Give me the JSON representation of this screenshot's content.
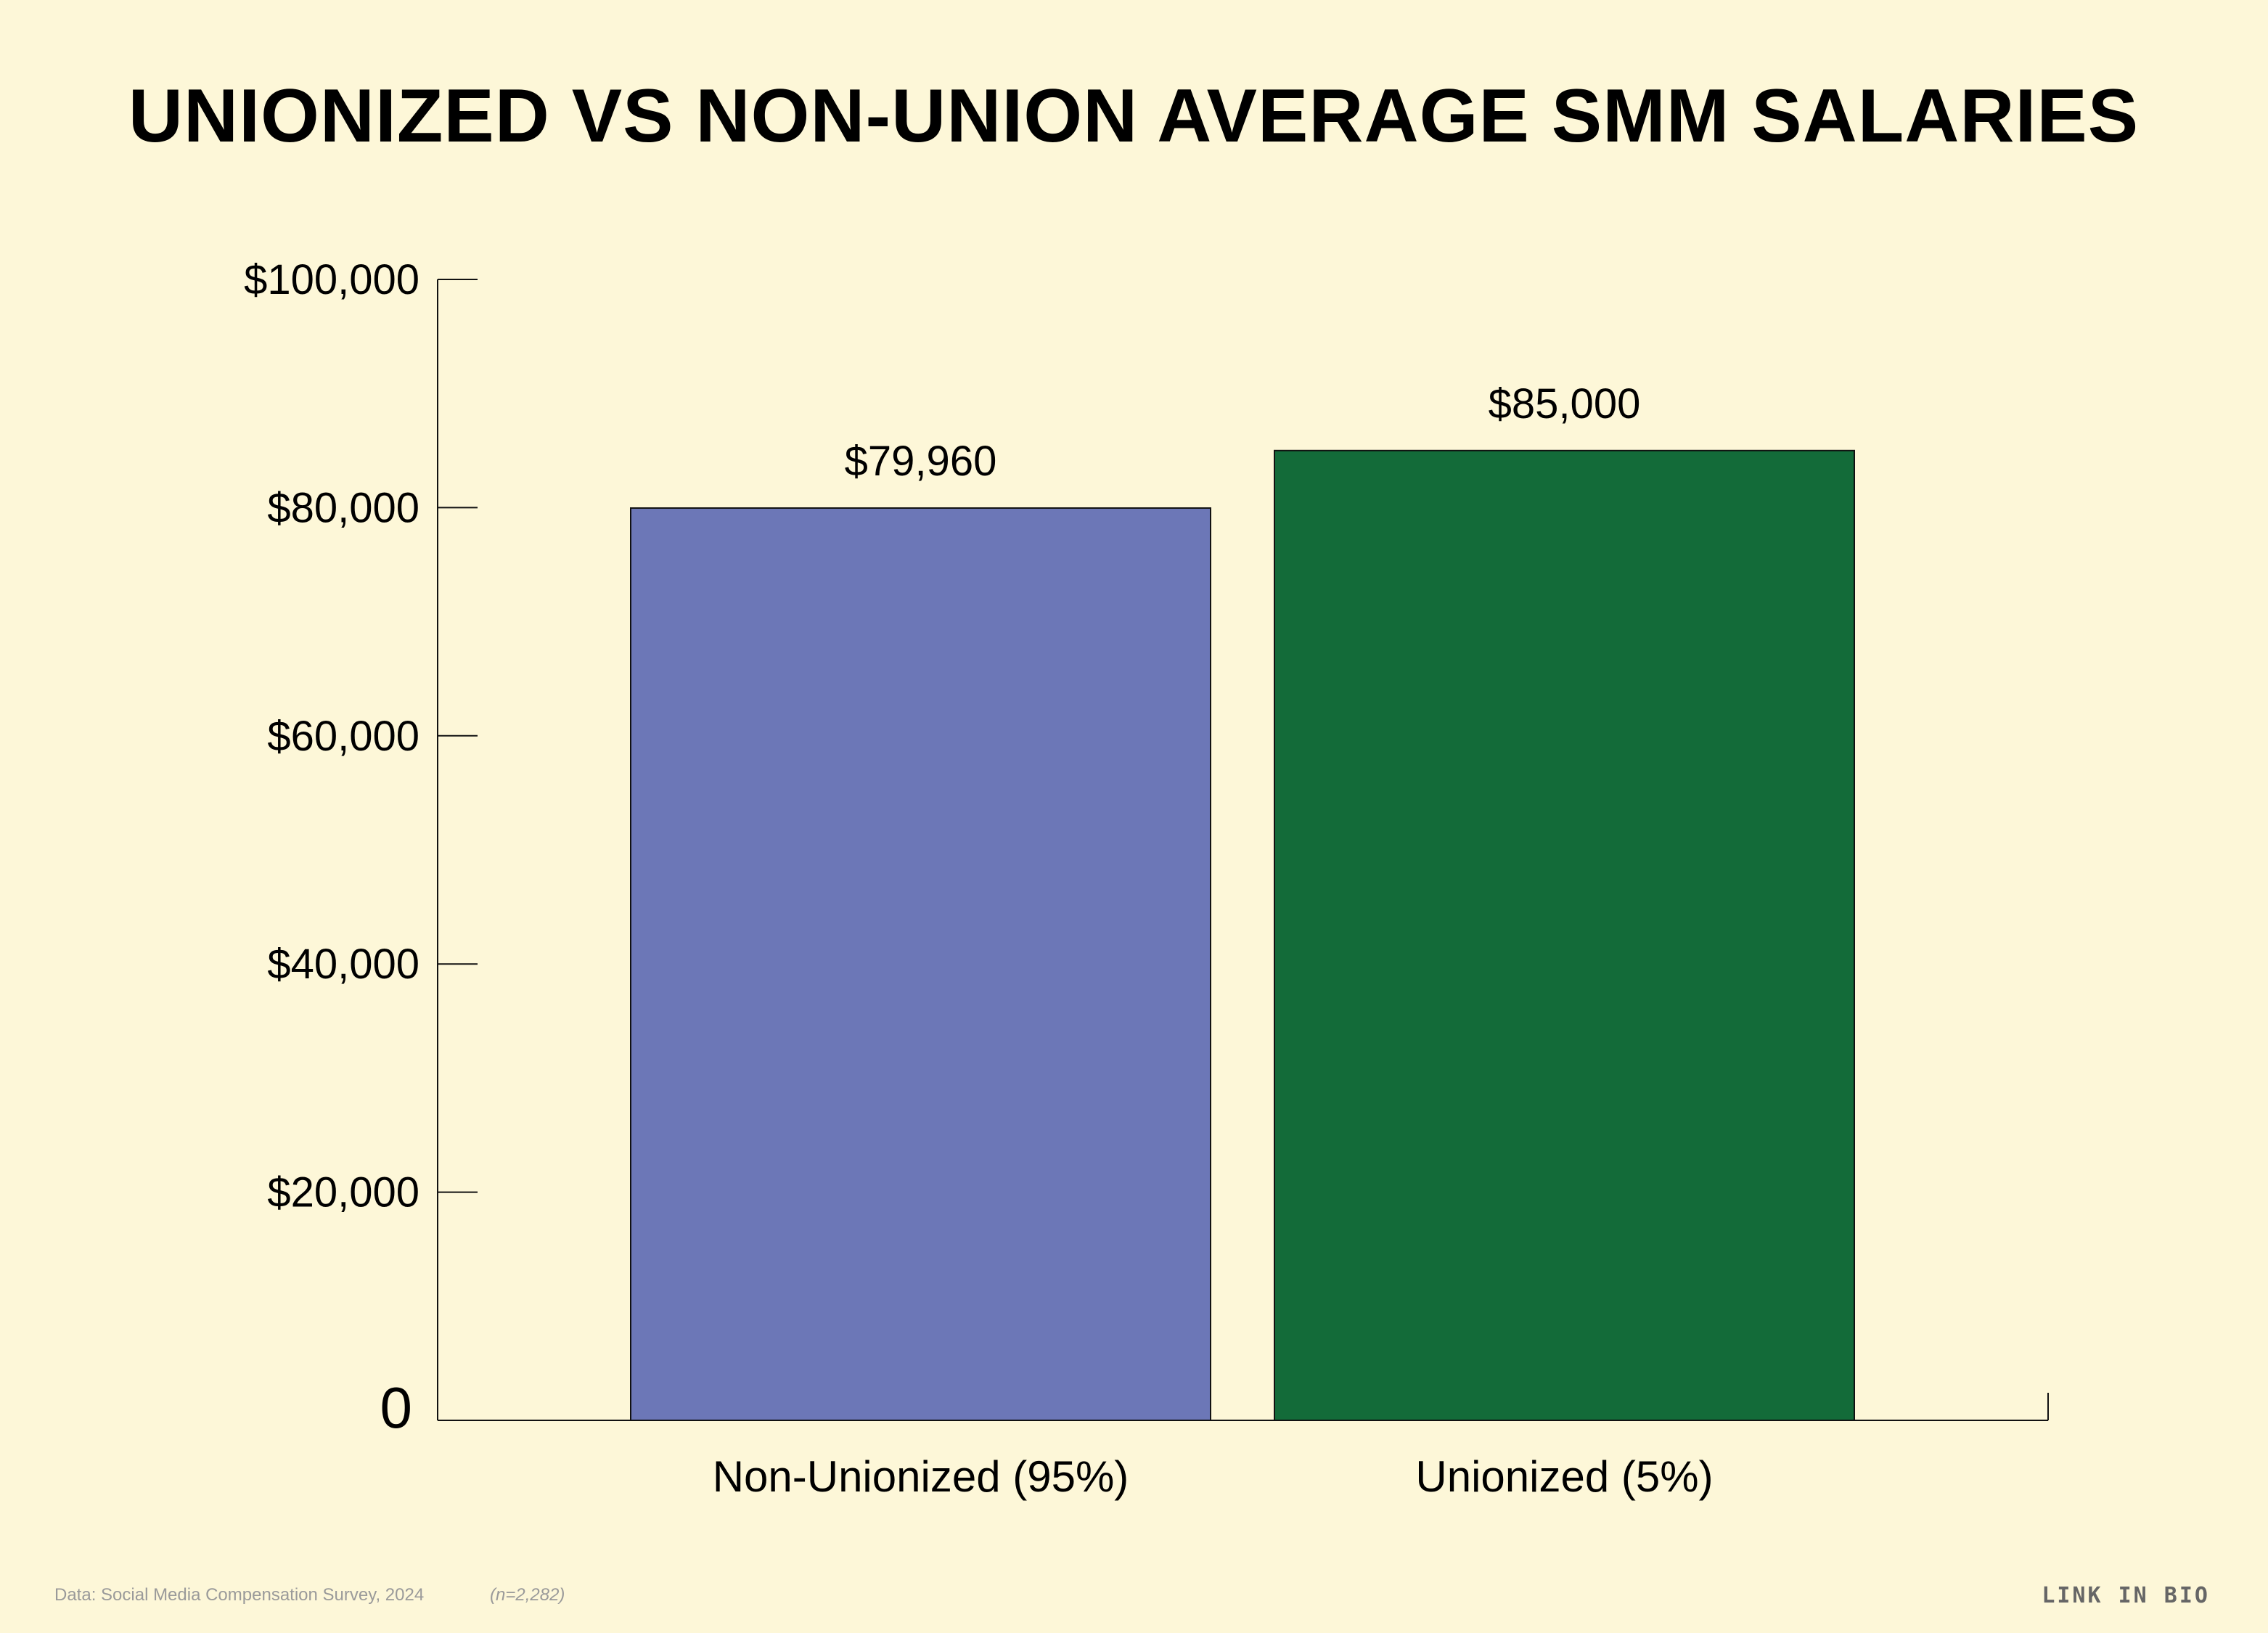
{
  "chart_data": {
    "type": "bar",
    "title": "UNIONIZED VS NON-UNION AVERAGE SMM SALARIES",
    "categories": [
      "Non-Unionized (95%)",
      "Unionized (5%)"
    ],
    "values": [
      79960,
      85000
    ],
    "data_labels": [
      "$79,960",
      "$85,000"
    ],
    "colors": [
      "#6c77b7",
      "#136b39"
    ],
    "ylim": [
      0,
      100000
    ],
    "yticks": [
      0,
      20000,
      40000,
      60000,
      80000,
      100000
    ],
    "ytick_labels": [
      "0",
      "$20,000",
      "$40,000",
      "$60,000",
      "$80,000",
      "$100,000"
    ],
    "xlabel": "",
    "ylabel": "",
    "grid": false,
    "legend": "none"
  },
  "footer": {
    "source": "Data: Social Media Compensation Survey, 2024",
    "sample": "(n=2,282)",
    "brand": "LINK IN BIO"
  }
}
